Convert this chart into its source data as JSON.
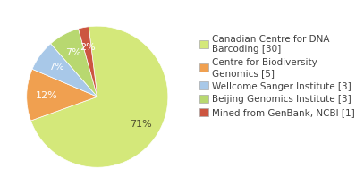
{
  "labels": [
    "Canadian Centre for DNA\nBarcoding [30]",
    "Centre for Biodiversity\nGenomics [5]",
    "Wellcome Sanger Institute [3]",
    "Beijing Genomics Institute [3]",
    "Mined from GenBank, NCBI [1]"
  ],
  "values": [
    30,
    5,
    3,
    3,
    1
  ],
  "colors": [
    "#d4e87a",
    "#f0a050",
    "#a8c8e8",
    "#b8d870",
    "#cc5540"
  ],
  "startangle": 97,
  "background_color": "#ffffff",
  "text_color": "#404040",
  "pct_colors": [
    "#505030",
    "white",
    "white",
    "white",
    "white"
  ],
  "fontsize": 8.0,
  "legend_fontsize": 7.5
}
